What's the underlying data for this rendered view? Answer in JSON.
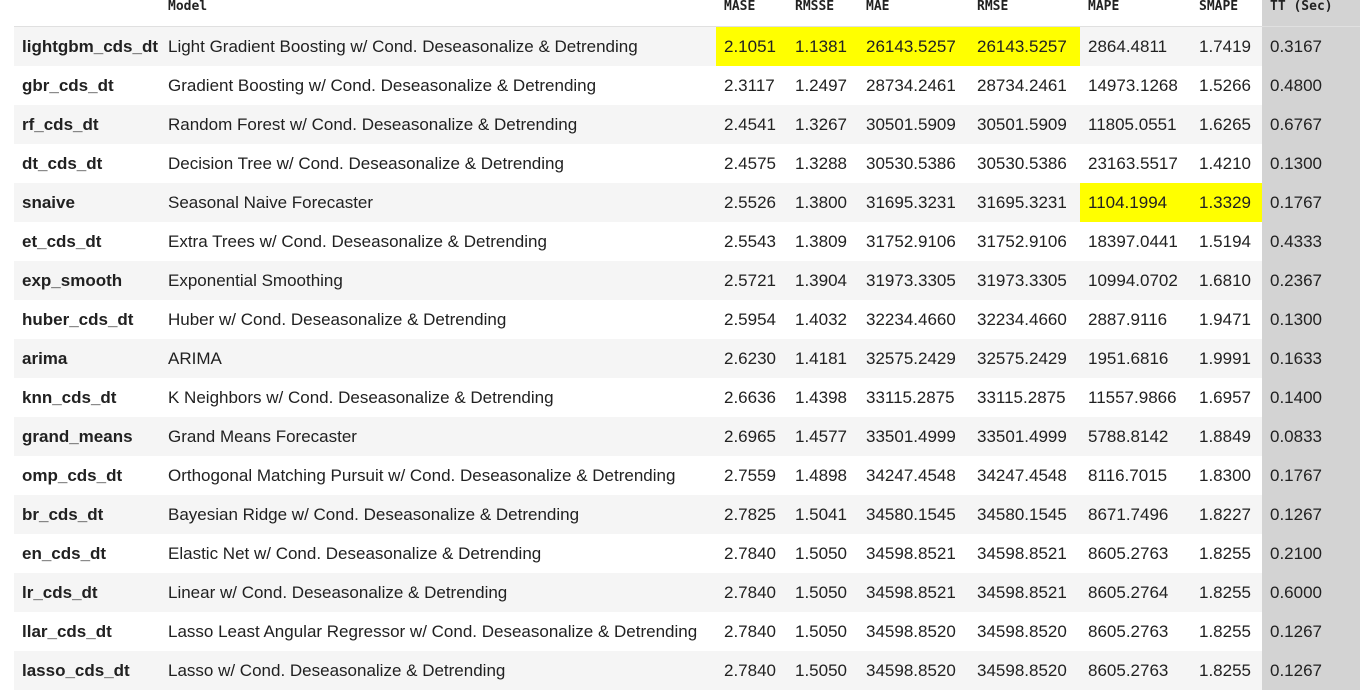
{
  "table": {
    "headers": [
      "",
      "Model",
      "MASE",
      "RMSSE",
      "MAE",
      "RMSE",
      "MAPE",
      "SMAPE",
      "TT (Sec)"
    ],
    "highlight_color": "#ffff00",
    "tt_column_color": "#d3d3d3",
    "rows": [
      {
        "id": "lightgbm_cds_dt",
        "model": "Light Gradient Boosting w/ Cond. Deseasonalize & Detrending",
        "mase": "2.1051",
        "rmsse": "1.1381",
        "mae": "26143.5257",
        "rmse": "26143.5257",
        "mape": "2864.4811",
        "smape": "1.7419",
        "tt": "0.3167",
        "highlight": [
          "mase",
          "rmsse",
          "mae",
          "rmse"
        ]
      },
      {
        "id": "gbr_cds_dt",
        "model": "Gradient Boosting w/ Cond. Deseasonalize & Detrending",
        "mase": "2.3117",
        "rmsse": "1.2497",
        "mae": "28734.2461",
        "rmse": "28734.2461",
        "mape": "14973.1268",
        "smape": "1.5266",
        "tt": "0.4800",
        "highlight": []
      },
      {
        "id": "rf_cds_dt",
        "model": "Random Forest w/ Cond. Deseasonalize & Detrending",
        "mase": "2.4541",
        "rmsse": "1.3267",
        "mae": "30501.5909",
        "rmse": "30501.5909",
        "mape": "11805.0551",
        "smape": "1.6265",
        "tt": "0.6767",
        "highlight": []
      },
      {
        "id": "dt_cds_dt",
        "model": "Decision Tree w/ Cond. Deseasonalize & Detrending",
        "mase": "2.4575",
        "rmsse": "1.3288",
        "mae": "30530.5386",
        "rmse": "30530.5386",
        "mape": "23163.5517",
        "smape": "1.4210",
        "tt": "0.1300",
        "highlight": []
      },
      {
        "id": "snaive",
        "model": "Seasonal Naive Forecaster",
        "mase": "2.5526",
        "rmsse": "1.3800",
        "mae": "31695.3231",
        "rmse": "31695.3231",
        "mape": "1104.1994",
        "smape": "1.3329",
        "tt": "0.1767",
        "highlight": [
          "mape",
          "smape"
        ]
      },
      {
        "id": "et_cds_dt",
        "model": "Extra Trees w/ Cond. Deseasonalize & Detrending",
        "mase": "2.5543",
        "rmsse": "1.3809",
        "mae": "31752.9106",
        "rmse": "31752.9106",
        "mape": "18397.0441",
        "smape": "1.5194",
        "tt": "0.4333",
        "highlight": []
      },
      {
        "id": "exp_smooth",
        "model": "Exponential Smoothing",
        "mase": "2.5721",
        "rmsse": "1.3904",
        "mae": "31973.3305",
        "rmse": "31973.3305",
        "mape": "10994.0702",
        "smape": "1.6810",
        "tt": "0.2367",
        "highlight": []
      },
      {
        "id": "huber_cds_dt",
        "model": "Huber w/ Cond. Deseasonalize & Detrending",
        "mase": "2.5954",
        "rmsse": "1.4032",
        "mae": "32234.4660",
        "rmse": "32234.4660",
        "mape": "2887.9116",
        "smape": "1.9471",
        "tt": "0.1300",
        "highlight": []
      },
      {
        "id": "arima",
        "model": "ARIMA",
        "mase": "2.6230",
        "rmsse": "1.4181",
        "mae": "32575.2429",
        "rmse": "32575.2429",
        "mape": "1951.6816",
        "smape": "1.9991",
        "tt": "0.1633",
        "highlight": []
      },
      {
        "id": "knn_cds_dt",
        "model": "K Neighbors w/ Cond. Deseasonalize & Detrending",
        "mase": "2.6636",
        "rmsse": "1.4398",
        "mae": "33115.2875",
        "rmse": "33115.2875",
        "mape": "11557.9866",
        "smape": "1.6957",
        "tt": "0.1400",
        "highlight": []
      },
      {
        "id": "grand_means",
        "model": "Grand Means Forecaster",
        "mase": "2.6965",
        "rmsse": "1.4577",
        "mae": "33501.4999",
        "rmse": "33501.4999",
        "mape": "5788.8142",
        "smape": "1.8849",
        "tt": "0.0833",
        "highlight": []
      },
      {
        "id": "omp_cds_dt",
        "model": "Orthogonal Matching Pursuit w/ Cond. Deseasonalize & Detrending",
        "mase": "2.7559",
        "rmsse": "1.4898",
        "mae": "34247.4548",
        "rmse": "34247.4548",
        "mape": "8116.7015",
        "smape": "1.8300",
        "tt": "0.1767",
        "highlight": []
      },
      {
        "id": "br_cds_dt",
        "model": "Bayesian Ridge w/ Cond. Deseasonalize & Detrending",
        "mase": "2.7825",
        "rmsse": "1.5041",
        "mae": "34580.1545",
        "rmse": "34580.1545",
        "mape": "8671.7496",
        "smape": "1.8227",
        "tt": "0.1267",
        "highlight": []
      },
      {
        "id": "en_cds_dt",
        "model": "Elastic Net w/ Cond. Deseasonalize & Detrending",
        "mase": "2.7840",
        "rmsse": "1.5050",
        "mae": "34598.8521",
        "rmse": "34598.8521",
        "mape": "8605.2763",
        "smape": "1.8255",
        "tt": "0.2100",
        "highlight": []
      },
      {
        "id": "lr_cds_dt",
        "model": "Linear w/ Cond. Deseasonalize & Detrending",
        "mase": "2.7840",
        "rmsse": "1.5050",
        "mae": "34598.8521",
        "rmse": "34598.8521",
        "mape": "8605.2764",
        "smape": "1.8255",
        "tt": "0.6000",
        "highlight": []
      },
      {
        "id": "llar_cds_dt",
        "model": "Lasso Least Angular Regressor w/ Cond. Deseasonalize & Detrending",
        "mase": "2.7840",
        "rmsse": "1.5050",
        "mae": "34598.8520",
        "rmse": "34598.8520",
        "mape": "8605.2763",
        "smape": "1.8255",
        "tt": "0.1267",
        "highlight": []
      },
      {
        "id": "lasso_cds_dt",
        "model": "Lasso w/ Cond. Deseasonalize & Detrending",
        "mase": "2.7840",
        "rmsse": "1.5050",
        "mae": "34598.8520",
        "rmse": "34598.8520",
        "mape": "8605.2763",
        "smape": "1.8255",
        "tt": "0.1267",
        "highlight": []
      }
    ]
  }
}
